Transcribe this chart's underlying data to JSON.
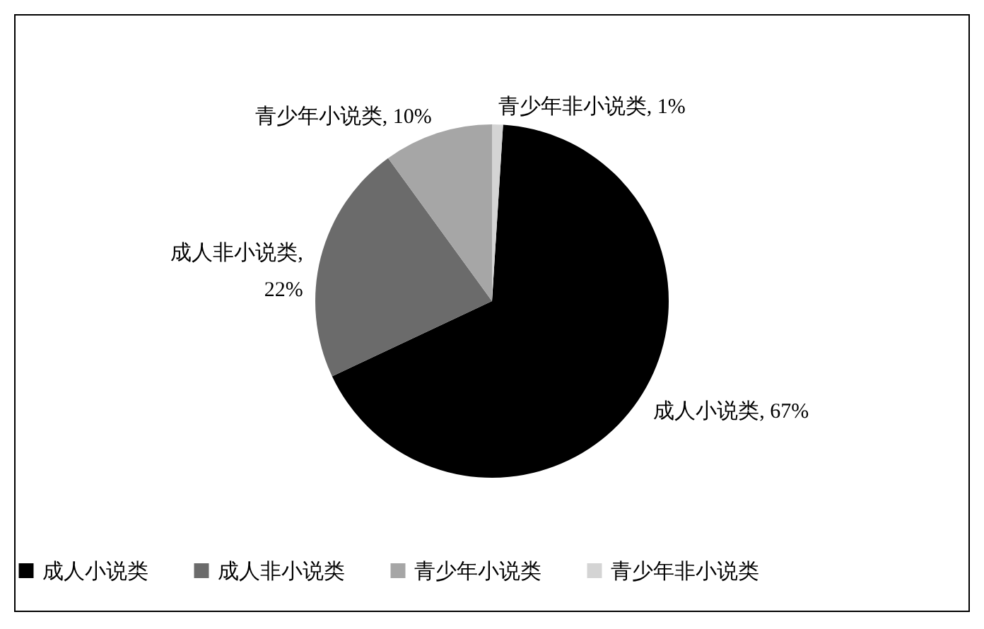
{
  "chart_data": {
    "type": "pie",
    "categories": [
      "成人小说类",
      "成人非小说类",
      "青少年小说类",
      "青少年非小说类"
    ],
    "values": [
      67,
      22,
      10,
      1
    ],
    "colors": [
      "#000000",
      "#6b6b6b",
      "#a6a6a6",
      "#d4d4d4"
    ],
    "value_labels": [
      "成人小说类, 67%",
      "成人非小说类,\n22%",
      "青少年小说类, 10%",
      "青少年非小说类, 1%"
    ],
    "legend": "bottom"
  }
}
